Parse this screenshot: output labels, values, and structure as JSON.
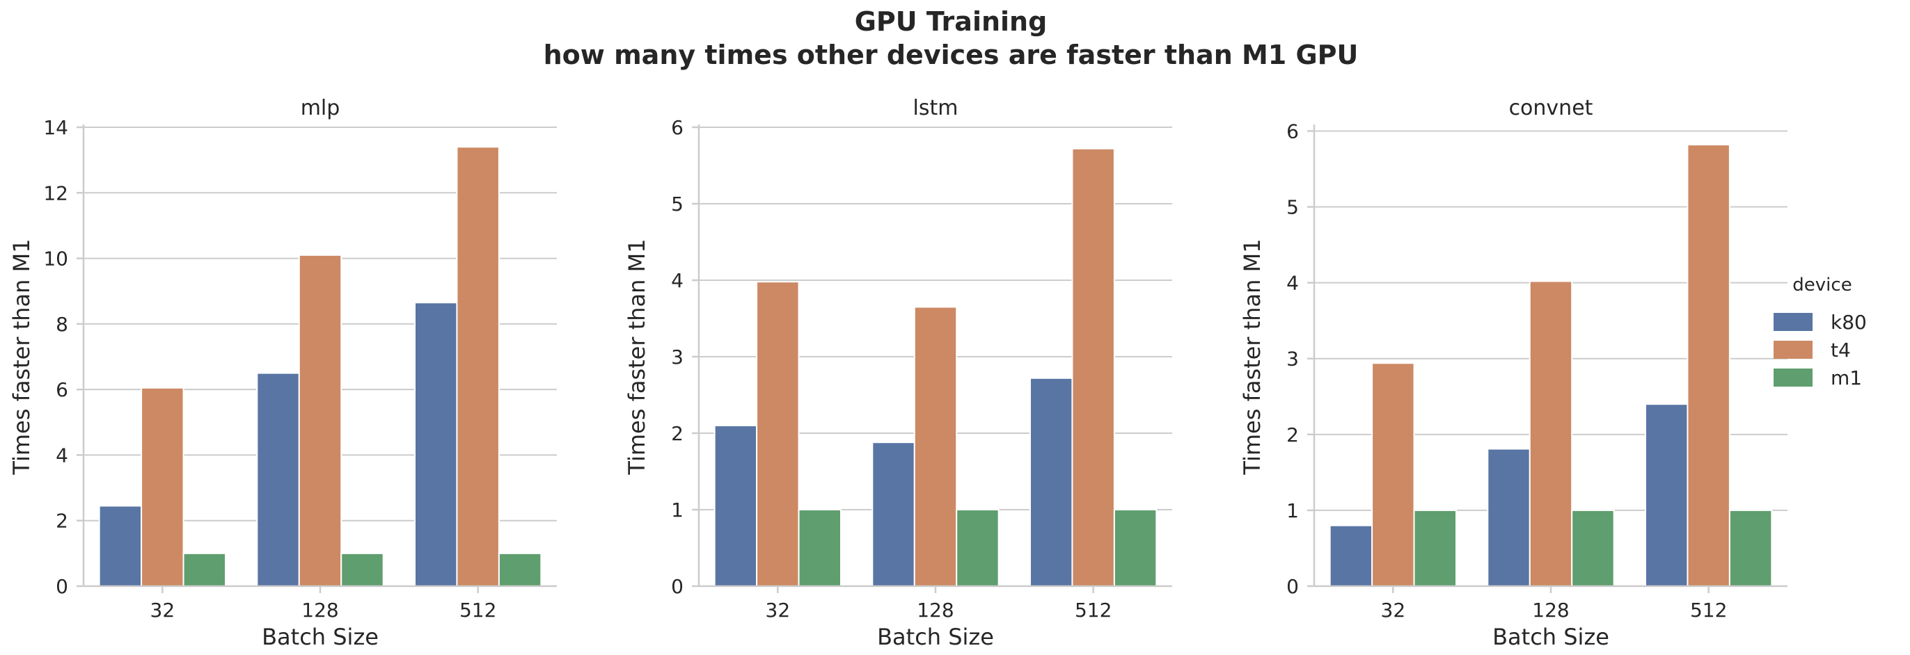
{
  "title_line1": "GPU Training",
  "title_line2": "how many times other devices are faster than M1 GPU",
  "colors": {
    "k80": "#5875a4",
    "t4": "#cc8963",
    "m1": "#5f9e6e",
    "grid": "#cccccc",
    "text": "#262626"
  },
  "legend": {
    "title": "device",
    "entries": [
      "k80",
      "t4",
      "m1"
    ]
  },
  "chart_data": [
    {
      "type": "bar",
      "title": "mlp",
      "xlabel": "Batch Size",
      "ylabel": "Times faster than M1",
      "categories": [
        "32",
        "128",
        "512"
      ],
      "ylim": [
        0,
        14
      ],
      "yticks": [
        0,
        2,
        4,
        6,
        8,
        10,
        12,
        14
      ],
      "series": [
        {
          "name": "k80",
          "values": [
            2.45,
            6.5,
            8.65
          ]
        },
        {
          "name": "t4",
          "values": [
            6.05,
            10.1,
            13.4
          ]
        },
        {
          "name": "m1",
          "values": [
            1,
            1,
            1
          ]
        }
      ],
      "grid": true,
      "legend_position": "right"
    },
    {
      "type": "bar",
      "title": "lstm",
      "xlabel": "Batch Size",
      "ylabel": "Times faster than M1",
      "categories": [
        "32",
        "128",
        "512"
      ],
      "ylim": [
        0,
        6
      ],
      "yticks": [
        0,
        1,
        2,
        3,
        4,
        5,
        6
      ],
      "series": [
        {
          "name": "k80",
          "values": [
            2.1,
            1.88,
            2.72
          ]
        },
        {
          "name": "t4",
          "values": [
            3.98,
            3.65,
            5.72
          ]
        },
        {
          "name": "m1",
          "values": [
            1,
            1,
            1
          ]
        }
      ],
      "grid": true,
      "legend_position": "right"
    },
    {
      "type": "bar",
      "title": "convnet",
      "xlabel": "Batch Size",
      "ylabel": "Times faster than M1",
      "categories": [
        "32",
        "128",
        "512"
      ],
      "ylim": [
        0,
        6.05
      ],
      "yticks": [
        0,
        1,
        2,
        3,
        4,
        5,
        6
      ],
      "series": [
        {
          "name": "k80",
          "values": [
            0.8,
            1.81,
            2.4
          ]
        },
        {
          "name": "t4",
          "values": [
            2.94,
            4.02,
            5.82
          ]
        },
        {
          "name": "m1",
          "values": [
            1,
            1,
            1
          ]
        }
      ],
      "grid": true,
      "legend_position": "right"
    }
  ]
}
